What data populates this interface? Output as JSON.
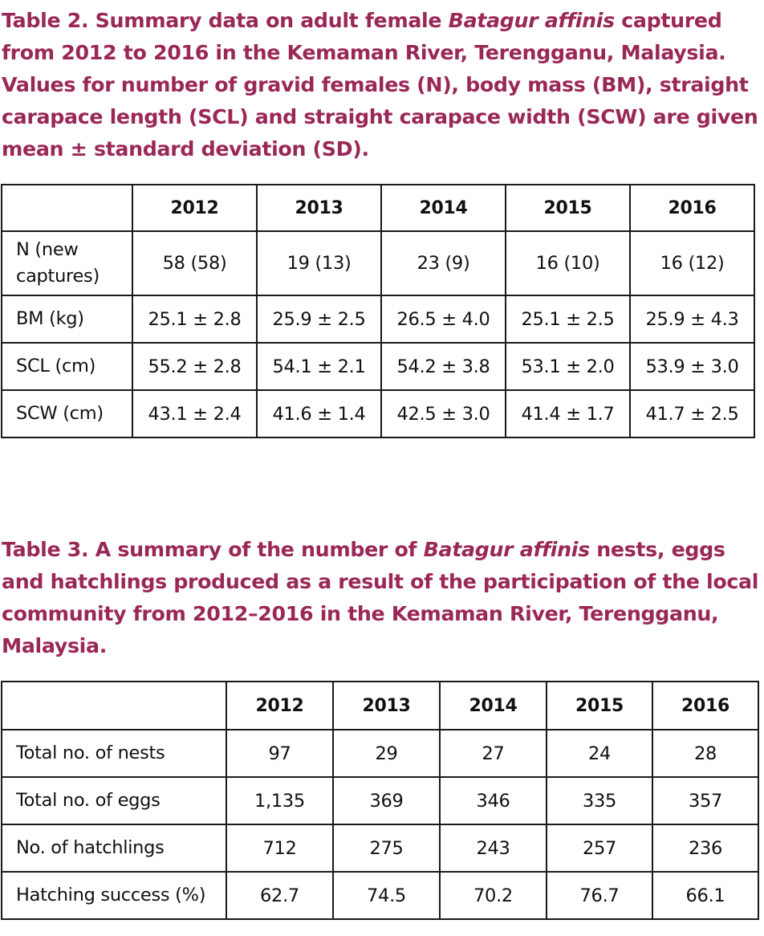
{
  "table2": {
    "caption_lines": [
      {
        "before": "Table 2. Summary data on adult female ",
        "italic": "Batagur affinis",
        "after": " captured"
      },
      {
        "before": "from 2012 to 2016 in the Kemaman River, Terengganu, Malaysia.",
        "italic": "",
        "after": ""
      },
      {
        "before": "Values for number of gravid females (N), body mass (BM), straight",
        "italic": "",
        "after": ""
      },
      {
        "before": "carapace length (SCL) and straight carapace width (SCW) are given as",
        "italic": "",
        "after": ""
      },
      {
        "before": "mean ± standard deviation (SD).",
        "italic": "",
        "after": ""
      }
    ],
    "headers": [
      "",
      "2012",
      "2013",
      "2014",
      "2015",
      "2016"
    ],
    "rows": [
      {
        "label": "N (new captures)",
        "values": [
          "58 (58)",
          "19 (13)",
          "23 (9)",
          "16 (10)",
          "16 (12)"
        ]
      },
      {
        "label": "BM (kg)",
        "values": [
          "25.1 ± 2.8",
          "25.9 ± 2.5",
          "26.5 ± 4.0",
          "25.1 ± 2.5",
          "25.9 ± 4.3"
        ]
      },
      {
        "label": "SCL (cm)",
        "values": [
          "55.2 ± 2.8",
          "54.1 ± 2.1",
          "54.2 ± 3.8",
          "53.1 ± 2.0",
          "53.9 ± 3.0"
        ]
      },
      {
        "label": "SCW (cm)",
        "values": [
          "43.1 ± 2.4",
          "41.6 ± 1.4",
          "42.5 ± 3.0",
          "41.4 ± 1.7",
          "41.7 ± 2.5"
        ]
      }
    ]
  },
  "table3": {
    "caption_lines": [
      {
        "before": "Table 3. A summary of the number of ",
        "italic": "Batagur affinis",
        "after": " nests, eggs"
      },
      {
        "before": "and hatchlings produced as a result of the participation of the local",
        "italic": "",
        "after": ""
      },
      {
        "before": "community from 2012–2016 in the Kemaman River, Terengganu,",
        "italic": "",
        "after": ""
      },
      {
        "before": "Malaysia.",
        "italic": "",
        "after": ""
      }
    ],
    "headers": [
      "",
      "2012",
      "2013",
      "2014",
      "2015",
      "2016"
    ],
    "rows": [
      {
        "label": "Total no. of nests",
        "values": [
          "97",
          "29",
          "27",
          "24",
          "28"
        ]
      },
      {
        "label": "Total no. of eggs",
        "values": [
          "1,135",
          "369",
          "346",
          "335",
          "357"
        ]
      },
      {
        "label": "No. of hatchlings",
        "values": [
          "712",
          "275",
          "243",
          "257",
          "236"
        ]
      },
      {
        "label": "Hatching success (%)",
        "values": [
          "62.7",
          "74.5",
          "70.2",
          "76.7",
          "66.1"
        ]
      }
    ]
  },
  "colors": {
    "caption": "#9a2857",
    "text": "#111111",
    "border": "#1a1a1a"
  }
}
